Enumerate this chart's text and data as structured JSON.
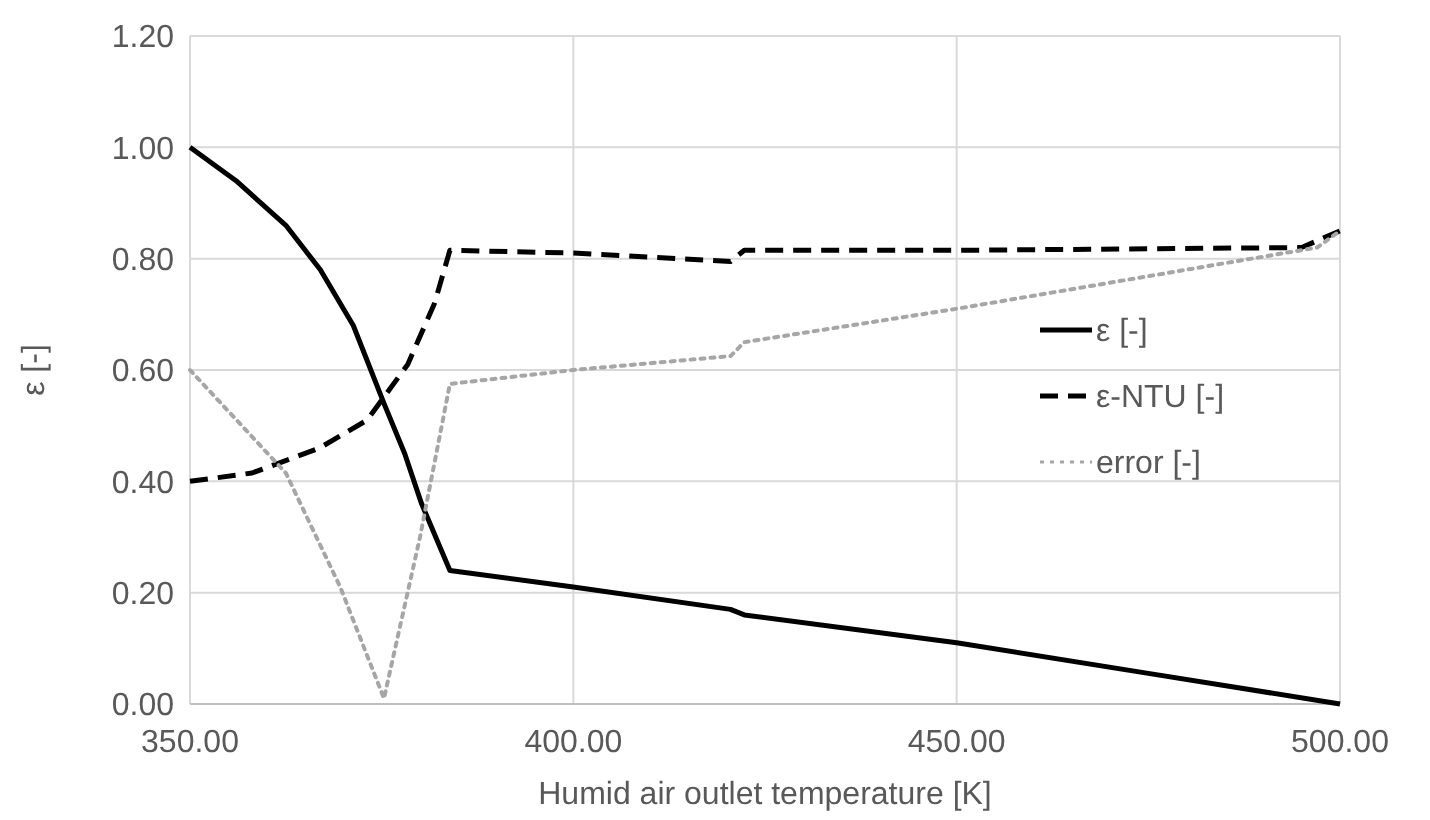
{
  "chart_data": {
    "type": "line",
    "xlabel": "Humid air outlet temperature [K]",
    "ylabel": "ε [-]",
    "xlim": [
      350,
      500
    ],
    "ylim": [
      0,
      1.2
    ],
    "xticks": [
      {
        "value": 350,
        "label": "350.00"
      },
      {
        "value": 400,
        "label": "400.00"
      },
      {
        "value": 450,
        "label": "450.00"
      },
      {
        "value": 500,
        "label": "500.00"
      }
    ],
    "yticks": [
      {
        "value": 0,
        "label": "0.00"
      },
      {
        "value": 0.2,
        "label": "0.20"
      },
      {
        "value": 0.4,
        "label": "0.40"
      },
      {
        "value": 0.6,
        "label": "0.60"
      },
      {
        "value": 0.8,
        "label": "0.80"
      },
      {
        "value": 1,
        "label": "1.00"
      },
      {
        "value": 1.2,
        "label": "1.20"
      }
    ],
    "grid": true,
    "legend": "right",
    "series": [
      {
        "name": "ε [-]",
        "color": "#000000",
        "line_style": "solid",
        "x": [
          350,
          356,
          362.5,
          367,
          371.3,
          375.3,
          378,
          380.2,
          383.9,
          400,
          420.5,
          422.3,
          450,
          475,
          500
        ],
        "values": [
          1,
          0.94,
          0.86,
          0.78,
          0.68,
          0.54,
          0.45,
          0.36,
          0.24,
          0.21,
          0.17,
          0.16,
          0.11,
          0.055,
          0
        ]
      },
      {
        "name": "ε-NTU [-]",
        "color": "#000000",
        "line_style": "dashed",
        "x": [
          350,
          358.1,
          366.9,
          373.1,
          378.4,
          381.9,
          383.9,
          400,
          420.5,
          422.3,
          450,
          495,
          500
        ],
        "values": [
          0.4,
          0.415,
          0.46,
          0.51,
          0.61,
          0.72,
          0.815,
          0.81,
          0.795,
          0.815,
          0.815,
          0.82,
          0.85
        ]
      },
      {
        "name": "error [-]",
        "color": "#a6a6a6",
        "line_style": "dotted",
        "x": [
          350,
          362.5,
          369.6,
          375.3,
          380,
          383.9,
          400,
          420.5,
          422.3,
          450,
          497,
          500
        ],
        "values": [
          0.6,
          0.415,
          0.21,
          0.01,
          0.3,
          0.575,
          0.6,
          0.625,
          0.65,
          0.71,
          0.82,
          0.85
        ]
      }
    ]
  }
}
